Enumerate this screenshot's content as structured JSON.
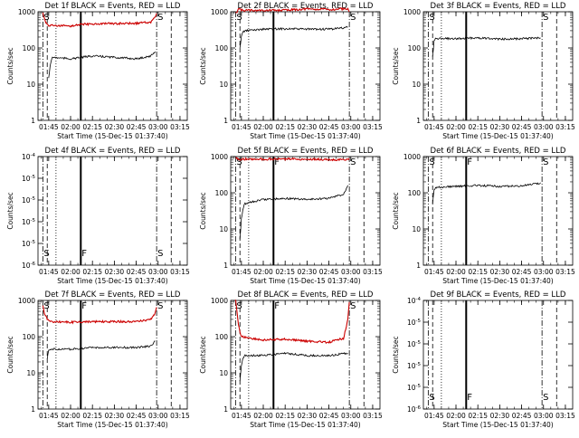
{
  "figure": {
    "x_ticks": [
      "01:45",
      "02:00",
      "02:15",
      "02:30",
      "02:45",
      "03:00",
      "03:15"
    ],
    "xlabel": "Start Time (15-Dec-15 01:37:40)",
    "ylabel": "Counts/sec",
    "colors": {
      "events": "#000000",
      "lld": "#cc0000",
      "axes": "#000000",
      "background": "#ffffff"
    }
  },
  "chart_data": [
    {
      "type": "line",
      "title": "Det 1f BLACK = Events, RED = LLD",
      "y_scale": "log",
      "ylim": [
        1,
        1000
      ],
      "y_tick_labels": [
        "1",
        "10",
        "100",
        "1000"
      ],
      "x_range": [
        "01:37:40",
        "03:20:00"
      ],
      "markers": [
        {
          "time": "01:41",
          "style": "dash-dot",
          "label": "S"
        },
        {
          "time": "01:44",
          "style": "dashed"
        },
        {
          "time": "01:50",
          "style": "dotted"
        },
        {
          "time": "02:07",
          "style": "solid"
        },
        {
          "time": "02:59",
          "style": "dash-dot",
          "label": "S"
        },
        {
          "time": "03:09",
          "style": "dashed"
        }
      ],
      "series": [
        {
          "color": "red",
          "x": [
            "01:41",
            "01:42",
            "01:43",
            "01:45",
            "02:00",
            "02:07",
            "02:15",
            "02:30",
            "02:45",
            "02:55",
            "02:58",
            "02:59"
          ],
          "y": [
            900,
            700,
            500,
            420,
            400,
            450,
            460,
            470,
            480,
            520,
            700,
            900
          ]
        },
        {
          "color": "black",
          "x": [
            "01:45",
            "01:46",
            "01:47",
            "01:48",
            "02:00",
            "02:15",
            "02:30",
            "02:45",
            "02:55",
            "02:58"
          ],
          "y": [
            15,
            30,
            50,
            55,
            50,
            60,
            55,
            50,
            60,
            80
          ]
        }
      ]
    },
    {
      "type": "line",
      "title": "Det 2f BLACK = Events, RED = LLD",
      "y_scale": "log",
      "ylim": [
        1,
        1000
      ],
      "y_tick_labels": [
        "1",
        "10",
        "100",
        "1000"
      ],
      "x_range": [
        "01:37:40",
        "03:20:00"
      ],
      "markers": [
        {
          "time": "01:41",
          "style": "dash-dot",
          "label": "S"
        },
        {
          "time": "01:44",
          "style": "dashed"
        },
        {
          "time": "01:50",
          "style": "dotted"
        },
        {
          "time": "02:07",
          "style": "solid"
        },
        {
          "time": "02:59",
          "style": "dash-dot",
          "label": "S"
        },
        {
          "time": "03:09",
          "style": "dashed"
        }
      ],
      "series": [
        {
          "color": "red",
          "x": [
            "01:41",
            "01:42",
            "01:43",
            "01:45",
            "02:00",
            "02:15",
            "02:30",
            "02:45",
            "02:55",
            "02:58",
            "02:59"
          ],
          "y": [
            1000,
            1000,
            1200,
            1100,
            1100,
            1100,
            1200,
            1150,
            1200,
            1200,
            1000
          ]
        },
        {
          "color": "black",
          "x": [
            "01:44",
            "01:45",
            "01:46",
            "01:48",
            "02:00",
            "02:15",
            "02:30",
            "02:45",
            "02:55",
            "02:58"
          ],
          "y": [
            100,
            200,
            280,
            300,
            330,
            340,
            330,
            330,
            360,
            380
          ]
        }
      ]
    },
    {
      "type": "line",
      "title": "Det 3f BLACK = Events, RED = LLD",
      "y_scale": "log",
      "ylim": [
        1,
        1000
      ],
      "y_tick_labels": [
        "1",
        "10",
        "100",
        "1000"
      ],
      "x_range": [
        "01:37:40",
        "03:20:00"
      ],
      "markers": [
        {
          "time": "01:41",
          "style": "dash-dot",
          "label": "S"
        },
        {
          "time": "01:44",
          "style": "dashed"
        },
        {
          "time": "01:50",
          "style": "dotted"
        },
        {
          "time": "02:07",
          "style": "solid"
        },
        {
          "time": "02:59",
          "style": "dash-dot",
          "label": "S"
        },
        {
          "time": "03:09",
          "style": "dashed"
        }
      ],
      "series": [
        {
          "color": "black",
          "x": [
            "01:44",
            "01:45",
            "01:46",
            "02:00",
            "02:15",
            "02:30",
            "02:45",
            "02:58"
          ],
          "y": [
            60,
            150,
            180,
            180,
            190,
            175,
            180,
            190
          ]
        }
      ]
    },
    {
      "type": "line",
      "title": "Det 4f BLACK = Events, RED = LLD",
      "y_scale": "log",
      "ylim": [
        1e-06,
        0.0001
      ],
      "y_tick_labels": [
        "10^-6",
        "10^-5",
        "10^-5",
        "10^-5",
        "10^-5",
        "10^-4"
      ],
      "x_range": [
        "01:37:40",
        "03:20:00"
      ],
      "markers": [
        {
          "time": "01:41",
          "style": "dash-dot",
          "label": "S"
        },
        {
          "time": "01:44",
          "style": "dashed"
        },
        {
          "time": "01:50",
          "style": "dotted"
        },
        {
          "time": "02:07",
          "style": "solid",
          "label": "F"
        },
        {
          "time": "02:59",
          "style": "dash-dot",
          "label": "S"
        },
        {
          "time": "03:09",
          "style": "dashed"
        }
      ],
      "series": []
    },
    {
      "type": "line",
      "title": "Det 5f BLACK = Events, RED = LLD",
      "y_scale": "log",
      "ylim": [
        1,
        1000
      ],
      "y_tick_labels": [
        "1",
        "10",
        "100",
        "1000"
      ],
      "x_range": [
        "01:37:40",
        "03:20:00"
      ],
      "markers": [
        {
          "time": "01:41",
          "style": "dash-dot",
          "label": "S"
        },
        {
          "time": "01:44",
          "style": "dashed"
        },
        {
          "time": "01:50",
          "style": "dotted"
        },
        {
          "time": "02:07",
          "style": "solid",
          "label": "F"
        },
        {
          "time": "02:59",
          "style": "dash-dot",
          "label": "S"
        },
        {
          "time": "03:09",
          "style": "dashed"
        }
      ],
      "series": [
        {
          "color": "red",
          "x": [
            "01:41",
            "01:42",
            "01:45",
            "02:00",
            "02:15",
            "02:30",
            "02:45",
            "02:58",
            "02:59"
          ],
          "y": [
            950,
            850,
            850,
            850,
            850,
            850,
            820,
            820,
            900
          ]
        },
        {
          "color": "black",
          "x": [
            "01:44",
            "01:45",
            "01:47",
            "02:00",
            "02:15",
            "02:30",
            "02:45",
            "02:55",
            "02:58"
          ],
          "y": [
            5,
            20,
            50,
            65,
            70,
            65,
            70,
            90,
            160
          ]
        }
      ]
    },
    {
      "type": "line",
      "title": "Det 6f BLACK = Events, RED = LLD",
      "y_scale": "log",
      "ylim": [
        1,
        1000
      ],
      "y_tick_labels": [
        "1",
        "10",
        "100",
        "1000"
      ],
      "x_range": [
        "01:37:40",
        "03:20:00"
      ],
      "markers": [
        {
          "time": "01:41",
          "style": "dash-dot",
          "label": "S"
        },
        {
          "time": "01:44",
          "style": "dashed"
        },
        {
          "time": "01:50",
          "style": "dotted"
        },
        {
          "time": "02:07",
          "style": "solid",
          "label": "F"
        },
        {
          "time": "02:59",
          "style": "dash-dot",
          "label": "S"
        },
        {
          "time": "03:09",
          "style": "dashed"
        }
      ],
      "series": [
        {
          "color": "black",
          "x": [
            "01:44",
            "01:45",
            "01:46",
            "02:00",
            "02:15",
            "02:30",
            "02:45",
            "02:55",
            "02:58"
          ],
          "y": [
            50,
            120,
            140,
            150,
            160,
            150,
            155,
            175,
            190
          ]
        }
      ]
    },
    {
      "type": "line",
      "title": "Det 7f BLACK = Events, RED = LLD",
      "y_scale": "log",
      "ylim": [
        1,
        1000
      ],
      "y_tick_labels": [
        "1",
        "10",
        "100",
        "1000"
      ],
      "x_range": [
        "01:37:40",
        "03:20:00"
      ],
      "markers": [
        {
          "time": "01:41",
          "style": "dash-dot",
          "label": "S"
        },
        {
          "time": "01:44",
          "style": "dashed"
        },
        {
          "time": "01:50",
          "style": "dotted"
        },
        {
          "time": "02:07",
          "style": "solid",
          "label": "F"
        },
        {
          "time": "02:59",
          "style": "dash-dot",
          "label": "S"
        },
        {
          "time": "03:09",
          "style": "dashed"
        }
      ],
      "series": [
        {
          "color": "red",
          "x": [
            "01:41",
            "01:42",
            "01:44",
            "01:46",
            "02:00",
            "02:15",
            "02:30",
            "02:45",
            "02:55",
            "02:58",
            "02:59"
          ],
          "y": [
            700,
            450,
            300,
            260,
            250,
            260,
            260,
            260,
            300,
            450,
            650
          ]
        },
        {
          "color": "black",
          "x": [
            "01:44",
            "01:45",
            "01:46",
            "02:00",
            "02:15",
            "02:30",
            "02:45",
            "02:55",
            "02:58"
          ],
          "y": [
            25,
            40,
            45,
            45,
            50,
            50,
            50,
            55,
            75
          ]
        }
      ]
    },
    {
      "type": "line",
      "title": "Det 8f BLACK = Events, RED = LLD",
      "y_scale": "log",
      "ylim": [
        1,
        1000
      ],
      "y_tick_labels": [
        "1",
        "10",
        "100",
        "1000"
      ],
      "x_range": [
        "01:37:40",
        "03:20:00"
      ],
      "markers": [
        {
          "time": "01:41",
          "style": "dash-dot",
          "label": "S"
        },
        {
          "time": "01:44",
          "style": "dashed"
        },
        {
          "time": "01:50",
          "style": "dotted"
        },
        {
          "time": "02:07",
          "style": "solid",
          "label": "F"
        },
        {
          "time": "02:59",
          "style": "dash-dot",
          "label": "S"
        },
        {
          "time": "03:09",
          "style": "dashed"
        }
      ],
      "series": [
        {
          "color": "red",
          "x": [
            "01:41",
            "01:42",
            "01:43",
            "01:45",
            "02:00",
            "02:15",
            "02:30",
            "02:45",
            "02:55",
            "02:58",
            "02:59"
          ],
          "y": [
            1000,
            500,
            200,
            100,
            80,
            85,
            75,
            70,
            90,
            300,
            900
          ]
        },
        {
          "color": "black",
          "x": [
            "01:44",
            "01:45",
            "01:46",
            "01:47",
            "02:00",
            "02:15",
            "02:30",
            "02:45",
            "02:58"
          ],
          "y": [
            6,
            15,
            25,
            30,
            30,
            35,
            30,
            30,
            35
          ]
        }
      ]
    },
    {
      "type": "line",
      "title": "Det 9f BLACK = Events, RED = LLD",
      "y_scale": "log",
      "ylim": [
        1e-06,
        0.0001
      ],
      "y_tick_labels": [
        "10^-6",
        "10^-5",
        "10^-5",
        "10^-5",
        "10^-5",
        "10^-4"
      ],
      "x_range": [
        "01:37:40",
        "03:20:00"
      ],
      "markers": [
        {
          "time": "01:41",
          "style": "dash-dot",
          "label": "S"
        },
        {
          "time": "01:44",
          "style": "dashed"
        },
        {
          "time": "01:50",
          "style": "dotted"
        },
        {
          "time": "02:07",
          "style": "solid",
          "label": "F"
        },
        {
          "time": "02:59",
          "style": "dash-dot",
          "label": "S"
        },
        {
          "time": "03:09",
          "style": "dashed"
        }
      ],
      "series": []
    }
  ]
}
